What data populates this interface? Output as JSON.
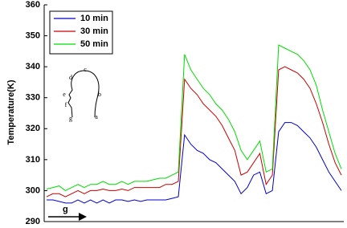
{
  "chart_data": {
    "type": "line",
    "ylabel": "Temperature(K)",
    "xlabel": "g",
    "ylim": [
      290,
      360
    ],
    "yticks": [
      290,
      300,
      310,
      320,
      330,
      340,
      350,
      360
    ],
    "annotations": [
      "a",
      "b",
      "c",
      "d",
      "e",
      "f",
      "g"
    ],
    "categories": [
      null,
      null,
      null,
      null,
      null,
      null,
      null,
      null,
      null,
      null,
      null,
      null,
      null,
      null,
      null,
      null,
      null,
      null,
      null,
      null,
      null,
      null,
      null,
      null,
      null,
      null,
      null,
      null,
      null,
      null,
      null,
      null,
      null,
      null,
      null,
      null,
      null,
      null,
      null,
      null,
      null,
      null,
      null,
      null,
      null,
      null,
      null,
      null
    ],
    "series": [
      {
        "name": "10 min",
        "color": "#0000cc",
        "values": [
          297,
          297,
          296.5,
          296,
          296,
          297,
          296,
          297,
          296,
          297,
          296,
          297,
          297,
          296.5,
          297,
          296.5,
          297,
          297,
          297,
          297,
          297.5,
          298,
          318,
          315,
          313,
          312,
          310,
          309,
          307,
          305,
          303,
          299,
          301,
          305,
          306,
          299,
          300,
          319,
          322,
          322,
          321,
          319,
          317,
          314,
          310,
          306,
          303,
          300
        ]
      },
      {
        "name": "30 min",
        "color": "#cc0000",
        "values": [
          298,
          299,
          299,
          298,
          299,
          300,
          299,
          300,
          300,
          300.5,
          300,
          300,
          300.5,
          300,
          301,
          301,
          301,
          301,
          301,
          302,
          302,
          303,
          336,
          333,
          331,
          328,
          326,
          324,
          321,
          317,
          313,
          305,
          306,
          309,
          312,
          302,
          305,
          339,
          340,
          339,
          338,
          336,
          333,
          328,
          322,
          315,
          309,
          305
        ]
      },
      {
        "name": "50 min",
        "color": "#00dd00",
        "values": [
          300.5,
          301,
          301.5,
          300,
          301,
          302,
          301,
          302,
          302,
          303,
          302,
          302,
          303,
          302,
          303,
          303,
          303,
          303.5,
          304,
          304,
          305,
          306,
          344,
          339,
          336,
          333,
          331,
          328,
          326,
          323,
          319,
          313,
          310,
          313,
          316,
          306,
          307,
          347,
          346,
          345,
          344,
          342,
          339,
          334,
          326,
          319,
          312,
          307
        ]
      }
    ]
  }
}
